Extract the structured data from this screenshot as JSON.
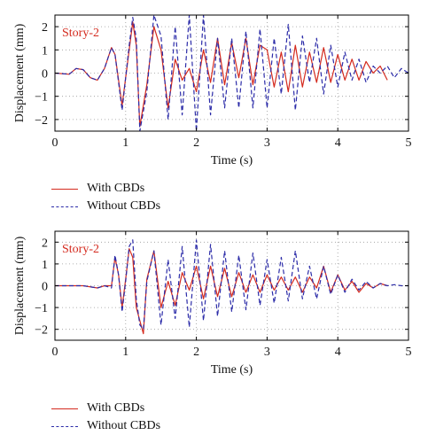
{
  "chart_data": [
    {
      "type": "line",
      "annotation": "Story-2",
      "xlabel": "Time (s)",
      "ylabel": "Displacement (mm)",
      "xlim": [
        0,
        5
      ],
      "ylim": [
        -2.5,
        2.5
      ],
      "xticks": [
        "0",
        "1",
        "2",
        "3",
        "4",
        "5"
      ],
      "yticks": [
        "2",
        "1",
        "0",
        "−1",
        "−2"
      ],
      "grid": true,
      "legend_position": "below",
      "series": [
        {
          "name": "With CBDs",
          "color": "#d42a1e",
          "style": "solid",
          "x": [
            0,
            0.2,
            0.3,
            0.4,
            0.5,
            0.6,
            0.7,
            0.8,
            0.85,
            0.95,
            1.05,
            1.1,
            1.15,
            1.2,
            1.3,
            1.4,
            1.5,
            1.6,
            1.7,
            1.8,
            1.9,
            2.0,
            2.1,
            2.2,
            2.3,
            2.4,
            2.5,
            2.6,
            2.7,
            2.8,
            2.9,
            3.0,
            3.1,
            3.2,
            3.3,
            3.4,
            3.5,
            3.6,
            3.7,
            3.8,
            3.9,
            4.0,
            4.1,
            4.2,
            4.3,
            4.4,
            4.5,
            4.6,
            4.7
          ],
          "y": [
            0,
            -0.05,
            0.2,
            0.15,
            -0.2,
            -0.3,
            0.2,
            1.1,
            0.8,
            -1.4,
            1.0,
            2.2,
            1.2,
            -2.3,
            -0.5,
            2.0,
            1.0,
            -1.5,
            0.6,
            -0.3,
            0.2,
            -0.8,
            1.0,
            -0.4,
            1.5,
            -0.5,
            1.3,
            -0.2,
            1.5,
            -0.5,
            1.2,
            1.0,
            -0.6,
            0.9,
            -0.8,
            1.2,
            -0.6,
            0.9,
            -0.4,
            1.1,
            -0.4,
            0.8,
            -0.3,
            0.6,
            -0.3,
            0.5,
            0.0,
            0.3,
            -0.3
          ]
        },
        {
          "name": "Without CBDs",
          "color": "#2b2ba8",
          "style": "dashed",
          "x": [
            0,
            0.2,
            0.3,
            0.4,
            0.5,
            0.6,
            0.7,
            0.8,
            0.85,
            0.95,
            1.05,
            1.1,
            1.15,
            1.2,
            1.3,
            1.4,
            1.5,
            1.6,
            1.7,
            1.8,
            1.9,
            2.0,
            2.1,
            2.2,
            2.3,
            2.4,
            2.5,
            2.6,
            2.7,
            2.8,
            2.9,
            3.0,
            3.1,
            3.2,
            3.3,
            3.4,
            3.5,
            3.6,
            3.7,
            3.8,
            3.9,
            4.0,
            4.1,
            4.2,
            4.3,
            4.4,
            4.5,
            4.6,
            4.7,
            4.8,
            4.9,
            5.0
          ],
          "y": [
            0,
            -0.05,
            0.2,
            0.15,
            -0.2,
            -0.3,
            0.2,
            1.1,
            0.8,
            -1.6,
            1.2,
            2.4,
            1.5,
            -2.5,
            -0.8,
            2.5,
            1.6,
            -2.0,
            2.0,
            -1.8,
            2.5,
            -2.5,
            2.5,
            -1.8,
            1.5,
            -1.5,
            1.5,
            -1.5,
            1.8,
            -1.5,
            1.9,
            -1.5,
            1.5,
            -0.9,
            2.1,
            -1.6,
            1.6,
            -0.4,
            1.5,
            -0.9,
            1.2,
            -0.6,
            0.9,
            -0.3,
            0.6,
            -0.4,
            0.3,
            0.0,
            0.3,
            -0.2,
            0.2,
            0.0
          ]
        }
      ]
    },
    {
      "type": "line",
      "annotation": "Story-2",
      "xlabel": "Time (s)",
      "ylabel": "Displacement (mm)",
      "xlim": [
        0,
        5
      ],
      "ylim": [
        -2.5,
        2.5
      ],
      "xticks": [
        "0",
        "1",
        "2",
        "3",
        "4",
        "5"
      ],
      "yticks": [
        "2",
        "1",
        "0",
        "−1",
        "−2"
      ],
      "grid": true,
      "legend_position": "below",
      "series": [
        {
          "name": "With CBDs",
          "color": "#d42a1e",
          "style": "solid",
          "x": [
            0,
            0.4,
            0.6,
            0.7,
            0.8,
            0.85,
            0.9,
            0.95,
            1.0,
            1.05,
            1.1,
            1.15,
            1.2,
            1.25,
            1.3,
            1.4,
            1.5,
            1.6,
            1.7,
            1.8,
            1.9,
            2.0,
            2.1,
            2.2,
            2.3,
            2.4,
            2.5,
            2.6,
            2.7,
            2.8,
            2.9,
            3.0,
            3.1,
            3.2,
            3.3,
            3.4,
            3.5,
            3.6,
            3.7,
            3.8,
            3.9,
            4.0,
            4.1,
            4.2,
            4.3,
            4.4,
            4.5,
            4.6,
            4.7
          ],
          "y": [
            0,
            0,
            -0.1,
            0.0,
            0.0,
            1.3,
            0.5,
            -1.0,
            0.3,
            1.7,
            1.3,
            -1.0,
            -1.6,
            -2.2,
            0.3,
            1.6,
            -1.0,
            0.2,
            -0.9,
            0.6,
            -0.2,
            0.9,
            -0.6,
            0.9,
            -0.5,
            0.8,
            -0.5,
            0.6,
            -0.3,
            0.5,
            -0.3,
            0.5,
            -0.2,
            0.4,
            -0.2,
            0.4,
            -0.3,
            0.4,
            -0.1,
            0.9,
            -0.3,
            0.5,
            -0.2,
            0.2,
            -0.3,
            0.1,
            -0.1,
            0.1,
            0.0
          ]
        },
        {
          "name": "Without CBDs",
          "color": "#2b2ba8",
          "style": "dashed",
          "x": [
            0,
            0.4,
            0.6,
            0.7,
            0.8,
            0.85,
            0.9,
            0.95,
            1.0,
            1.05,
            1.1,
            1.15,
            1.2,
            1.25,
            1.3,
            1.4,
            1.5,
            1.6,
            1.7,
            1.8,
            1.9,
            2.0,
            2.1,
            2.2,
            2.3,
            2.4,
            2.5,
            2.6,
            2.7,
            2.8,
            2.9,
            3.0,
            3.1,
            3.2,
            3.3,
            3.4,
            3.5,
            3.6,
            3.7,
            3.8,
            3.9,
            4.0,
            4.1,
            4.2,
            4.3,
            4.4,
            4.5,
            4.6,
            4.7,
            4.8,
            4.9,
            5.0
          ],
          "y": [
            0,
            0,
            -0.1,
            0.0,
            -0.1,
            1.4,
            0.5,
            -1.2,
            0.2,
            1.8,
            2.1,
            -0.6,
            -1.8,
            -2.0,
            0.2,
            1.6,
            -1.8,
            1.2,
            -1.5,
            1.8,
            -1.9,
            2.1,
            -1.6,
            1.9,
            -1.4,
            1.6,
            -1.2,
            1.4,
            -1.1,
            1.5,
            -0.9,
            1.2,
            -0.8,
            1.3,
            -0.7,
            1.6,
            -0.6,
            0.9,
            -0.6,
            0.9,
            -0.4,
            0.5,
            -0.3,
            0.3,
            -0.2,
            0.2,
            -0.1,
            0.1,
            0.0,
            0.05,
            0.0,
            0.0
          ]
        }
      ]
    }
  ]
}
